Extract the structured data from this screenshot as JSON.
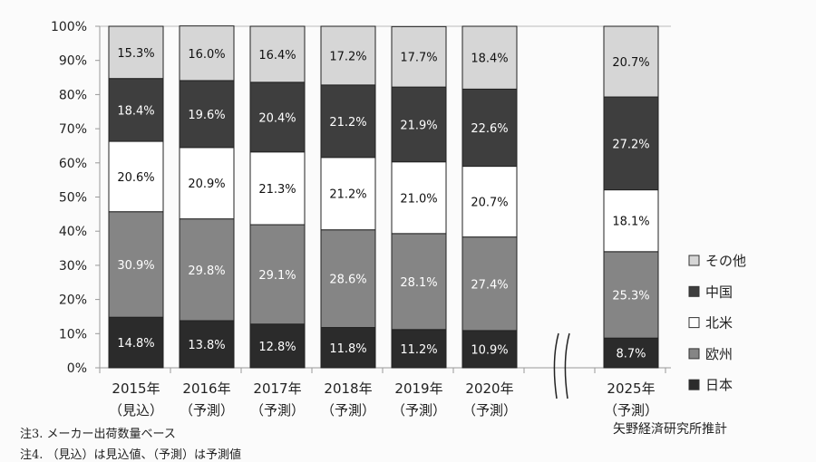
{
  "chart_data": {
    "type": "bar",
    "stacked": true,
    "percent": true,
    "categories": [
      [
        "2015年",
        "（見込）"
      ],
      [
        "2016年",
        "（予測）"
      ],
      [
        "2017年",
        "（予測）"
      ],
      [
        "2018年",
        "（予測）"
      ],
      [
        "2019年",
        "（予測）"
      ],
      [
        "2020年",
        "（予測）"
      ],
      [
        "2025年",
        "（予測）"
      ]
    ],
    "axis_break_before": "2025年",
    "ylim": [
      0,
      100
    ],
    "yticks": [
      "0%",
      "10%",
      "20%",
      "30%",
      "40%",
      "50%",
      "60%",
      "70%",
      "80%",
      "90%",
      "100%"
    ],
    "gridlines": false,
    "legend_position": "right",
    "series": [
      {
        "name": "日本",
        "color": "#2b2b2b",
        "label_color": "#ffffff",
        "values": [
          14.8,
          13.8,
          12.8,
          11.8,
          11.2,
          10.9,
          8.7
        ]
      },
      {
        "name": "欧州",
        "color": "#858585",
        "label_color": "#ffffff",
        "values": [
          30.9,
          29.8,
          29.1,
          28.6,
          28.1,
          27.4,
          25.3
        ]
      },
      {
        "name": "北米",
        "color": "#ffffff",
        "label_color": "#111111",
        "values": [
          20.6,
          20.9,
          21.3,
          21.2,
          21.0,
          20.7,
          18.1
        ]
      },
      {
        "name": "中国",
        "color": "#3e3e3e",
        "label_color": "#ffffff",
        "values": [
          18.4,
          19.6,
          20.4,
          21.2,
          21.9,
          22.6,
          27.2
        ]
      },
      {
        "name": "その他",
        "color": "#d6d6d6",
        "label_color": "#111111",
        "values": [
          15.3,
          16.0,
          16.4,
          17.2,
          17.7,
          18.4,
          20.7
        ]
      }
    ]
  },
  "notes": [
    "注3. メーカー出荷数量ベース",
    "注4. （見込）は見込値、（予測）は予測値"
  ],
  "source": "矢野経済研究所推計"
}
